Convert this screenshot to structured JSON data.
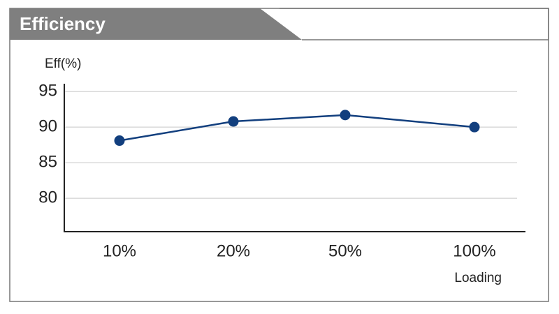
{
  "chart_data": {
    "type": "line",
    "title": "Efficiency",
    "y_label": "Eff(%)",
    "x_label": "Loading",
    "categories": [
      "10%",
      "20%",
      "50%",
      "100%"
    ],
    "series": [
      {
        "name": "Efficiency",
        "color": "#123f7e",
        "values": [
          88.1,
          90.8,
          91.7,
          90.0
        ]
      }
    ],
    "ylim": [
      75.3,
      96.1
    ],
    "yticks": [
      80,
      85,
      90,
      95
    ],
    "grid": true
  }
}
